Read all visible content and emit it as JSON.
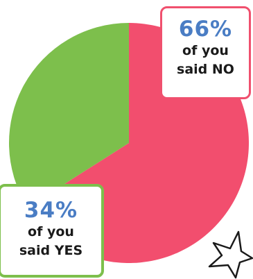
{
  "chart_data": {
    "type": "pie",
    "slices": [
      {
        "label": "NO",
        "value": 66,
        "color": "#f24e6e"
      },
      {
        "label": "YES",
        "value": 34,
        "color": "#7dbf4c"
      }
    ]
  },
  "callouts": {
    "no": {
      "percent": "66%",
      "line1": "of you",
      "line2": "said NO"
    },
    "yes": {
      "percent": "34%",
      "line1": "of you",
      "line2": "said YES"
    }
  },
  "colors": {
    "no_border": "#f0506e",
    "yes_border": "#7dbf4c",
    "percent_text": "#4a7dc4"
  },
  "icons": {
    "decoration": "star-outline-icon"
  }
}
